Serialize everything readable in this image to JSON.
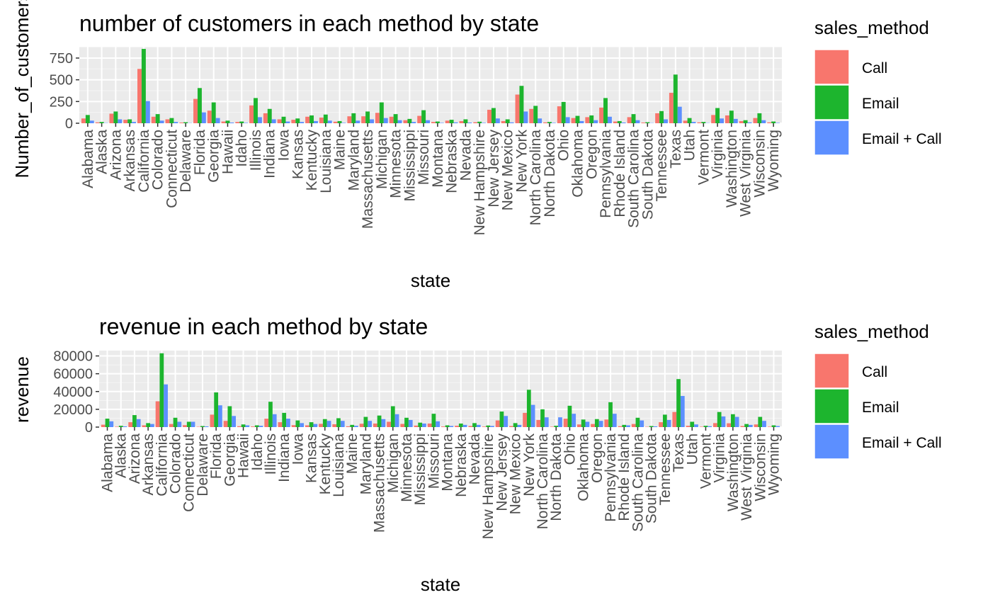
{
  "colors": {
    "Call": "#F8766D",
    "Email": "#1DB52E",
    "Email + Call": "#5C8FFF",
    "panel_bg": "#EBEBEB",
    "grid_major": "#FFFFFF",
    "text": "#000000",
    "tick_text": "#4D4D4D"
  },
  "legend_title": "sales_method",
  "chart_data": [
    {
      "type": "bar",
      "title": "number of customers in each method by state",
      "xlabel": "state",
      "ylabel": "Number_of_customers",
      "ylim": [
        0,
        880
      ],
      "yticks": [
        0,
        250,
        500,
        750
      ],
      "ytick_labels": [
        "0",
        "250",
        "500",
        "750"
      ],
      "grid": true,
      "legend_position": "right",
      "categories": [
        "Alabama",
        "Alaska",
        "Arizona",
        "Arkansas",
        "California",
        "Colorado",
        "Connecticut",
        "Delaware",
        "Florida",
        "Georgia",
        "Hawaii",
        "Idaho",
        "Illinois",
        "Indiana",
        "Iowa",
        "Kansas",
        "Kentucky",
        "Louisiana",
        "Maine",
        "Maryland",
        "Massachusetts",
        "Michigan",
        "Minnesota",
        "Mississippi",
        "Missouri",
        "Montana",
        "Nebraska",
        "Nevada",
        "New Hampshire",
        "New Jersey",
        "New Mexico",
        "New York",
        "North Carolina",
        "North Dakota",
        "Ohio",
        "Oklahoma",
        "Oregon",
        "Pennsylvania",
        "Rhode Island",
        "South Carolina",
        "South Dakota",
        "Tennessee",
        "Texas",
        "Utah",
        "Vermont",
        "Virginia",
        "Washington",
        "West Virginia",
        "Wisconsin",
        "Wyoming"
      ],
      "series": [
        {
          "name": "Call",
          "values": [
            55,
            10,
            110,
            40,
            625,
            75,
            45,
            8,
            280,
            145,
            20,
            15,
            205,
            115,
            45,
            40,
            75,
            65,
            18,
            80,
            80,
            120,
            75,
            35,
            85,
            15,
            30,
            25,
            12,
            155,
            25,
            330,
            165,
            10,
            195,
            60,
            70,
            180,
            20,
            70,
            8,
            115,
            350,
            30,
            10,
            95,
            90,
            25,
            60,
            10
          ]
        },
        {
          "name": "Email",
          "values": [
            95,
            15,
            135,
            45,
            855,
            105,
            60,
            12,
            405,
            240,
            30,
            20,
            290,
            165,
            75,
            55,
            90,
            100,
            25,
            115,
            135,
            240,
            105,
            50,
            150,
            20,
            40,
            45,
            18,
            175,
            45,
            430,
            200,
            15,
            245,
            85,
            90,
            290,
            25,
            105,
            12,
            140,
            560,
            60,
            15,
            175,
            145,
            35,
            115,
            20
          ]
        },
        {
          "name": "Email + Call",
          "values": [
            30,
            3,
            45,
            15,
            255,
            30,
            15,
            3,
            125,
            60,
            8,
            5,
            70,
            45,
            20,
            15,
            25,
            30,
            5,
            30,
            45,
            60,
            35,
            15,
            35,
            5,
            10,
            8,
            5,
            55,
            10,
            135,
            55,
            5,
            70,
            25,
            35,
            75,
            8,
            35,
            3,
            45,
            190,
            15,
            3,
            55,
            50,
            10,
            35,
            5
          ]
        }
      ]
    },
    {
      "type": "bar",
      "title": "revenue in each method by state",
      "xlabel": "state",
      "ylabel": "revenue",
      "ylim": [
        0,
        86000
      ],
      "yticks": [
        0,
        20000,
        40000,
        60000,
        80000
      ],
      "ytick_labels": [
        "0",
        "20000",
        "40000",
        "60000",
        "80000"
      ],
      "grid": true,
      "legend_position": "right",
      "categories": [
        "Alabama",
        "Alaska",
        "Arizona",
        "Arkansas",
        "California",
        "Colorado",
        "Connecticut",
        "Delaware",
        "Florida",
        "Georgia",
        "Hawaii",
        "Idaho",
        "Illinois",
        "Indiana",
        "Iowa",
        "Kansas",
        "Kentucky",
        "Louisiana",
        "Maine",
        "Maryland",
        "Massachusetts",
        "Michigan",
        "Minnesota",
        "Mississippi",
        "Missouri",
        "Montana",
        "Nebraska",
        "Nevada",
        "New Hampshire",
        "New Jersey",
        "New Mexico",
        "New York",
        "North Carolina",
        "North Dakota",
        "Ohio",
        "Oklahoma",
        "Oregon",
        "Pennsylvania",
        "Rhode Island",
        "South Carolina",
        "South Dakota",
        "Tennessee",
        "Texas",
        "Utah",
        "Vermont",
        "Virginia",
        "Washington",
        "West Virginia",
        "Wisconsin",
        "Wyoming"
      ],
      "series": [
        {
          "name": "Call",
          "values": [
            2700,
            500,
            5500,
            2000,
            29000,
            3500,
            2200,
            400,
            14000,
            7000,
            1000,
            700,
            9500,
            5500,
            2200,
            2000,
            3700,
            3200,
            900,
            3800,
            4000,
            6000,
            3600,
            1700,
            4000,
            700,
            1500,
            1300,
            600,
            7500,
            1200,
            16000,
            8000,
            500,
            9500,
            3000,
            3500,
            8500,
            1000,
            3500,
            400,
            5500,
            17000,
            1500,
            500,
            4500,
            4300,
            1200,
            3000,
            500
          ]
        },
        {
          "name": "Email",
          "values": [
            9500,
            1500,
            13500,
            4500,
            83000,
            10500,
            6000,
            1200,
            39000,
            23500,
            3000,
            2000,
            28500,
            16000,
            7500,
            5500,
            9000,
            10000,
            2500,
            11500,
            13000,
            23500,
            10500,
            5000,
            15000,
            2000,
            4000,
            4500,
            1800,
            17500,
            4500,
            42000,
            20000,
            1500,
            24000,
            8500,
            9000,
            28000,
            2500,
            10500,
            1200,
            14000,
            54000,
            6000,
            1500,
            17000,
            14500,
            3500,
            11500,
            2000
          ]
        },
        {
          "name": "Email + Call",
          "values": [
            6500,
            800,
            9000,
            3500,
            48000,
            6000,
            6000,
            800,
            24500,
            12500,
            2000,
            1500,
            14500,
            9500,
            4500,
            3500,
            7000,
            7000,
            1500,
            7000,
            9000,
            14500,
            8000,
            4000,
            6500,
            1300,
            2500,
            2500,
            1300,
            12500,
            2500,
            25000,
            11000,
            11000,
            15000,
            6000,
            7000,
            15000,
            2000,
            7500,
            800,
            8000,
            35000,
            3000,
            1000,
            12000,
            11500,
            2500,
            7000,
            1200
          ]
        }
      ]
    }
  ]
}
